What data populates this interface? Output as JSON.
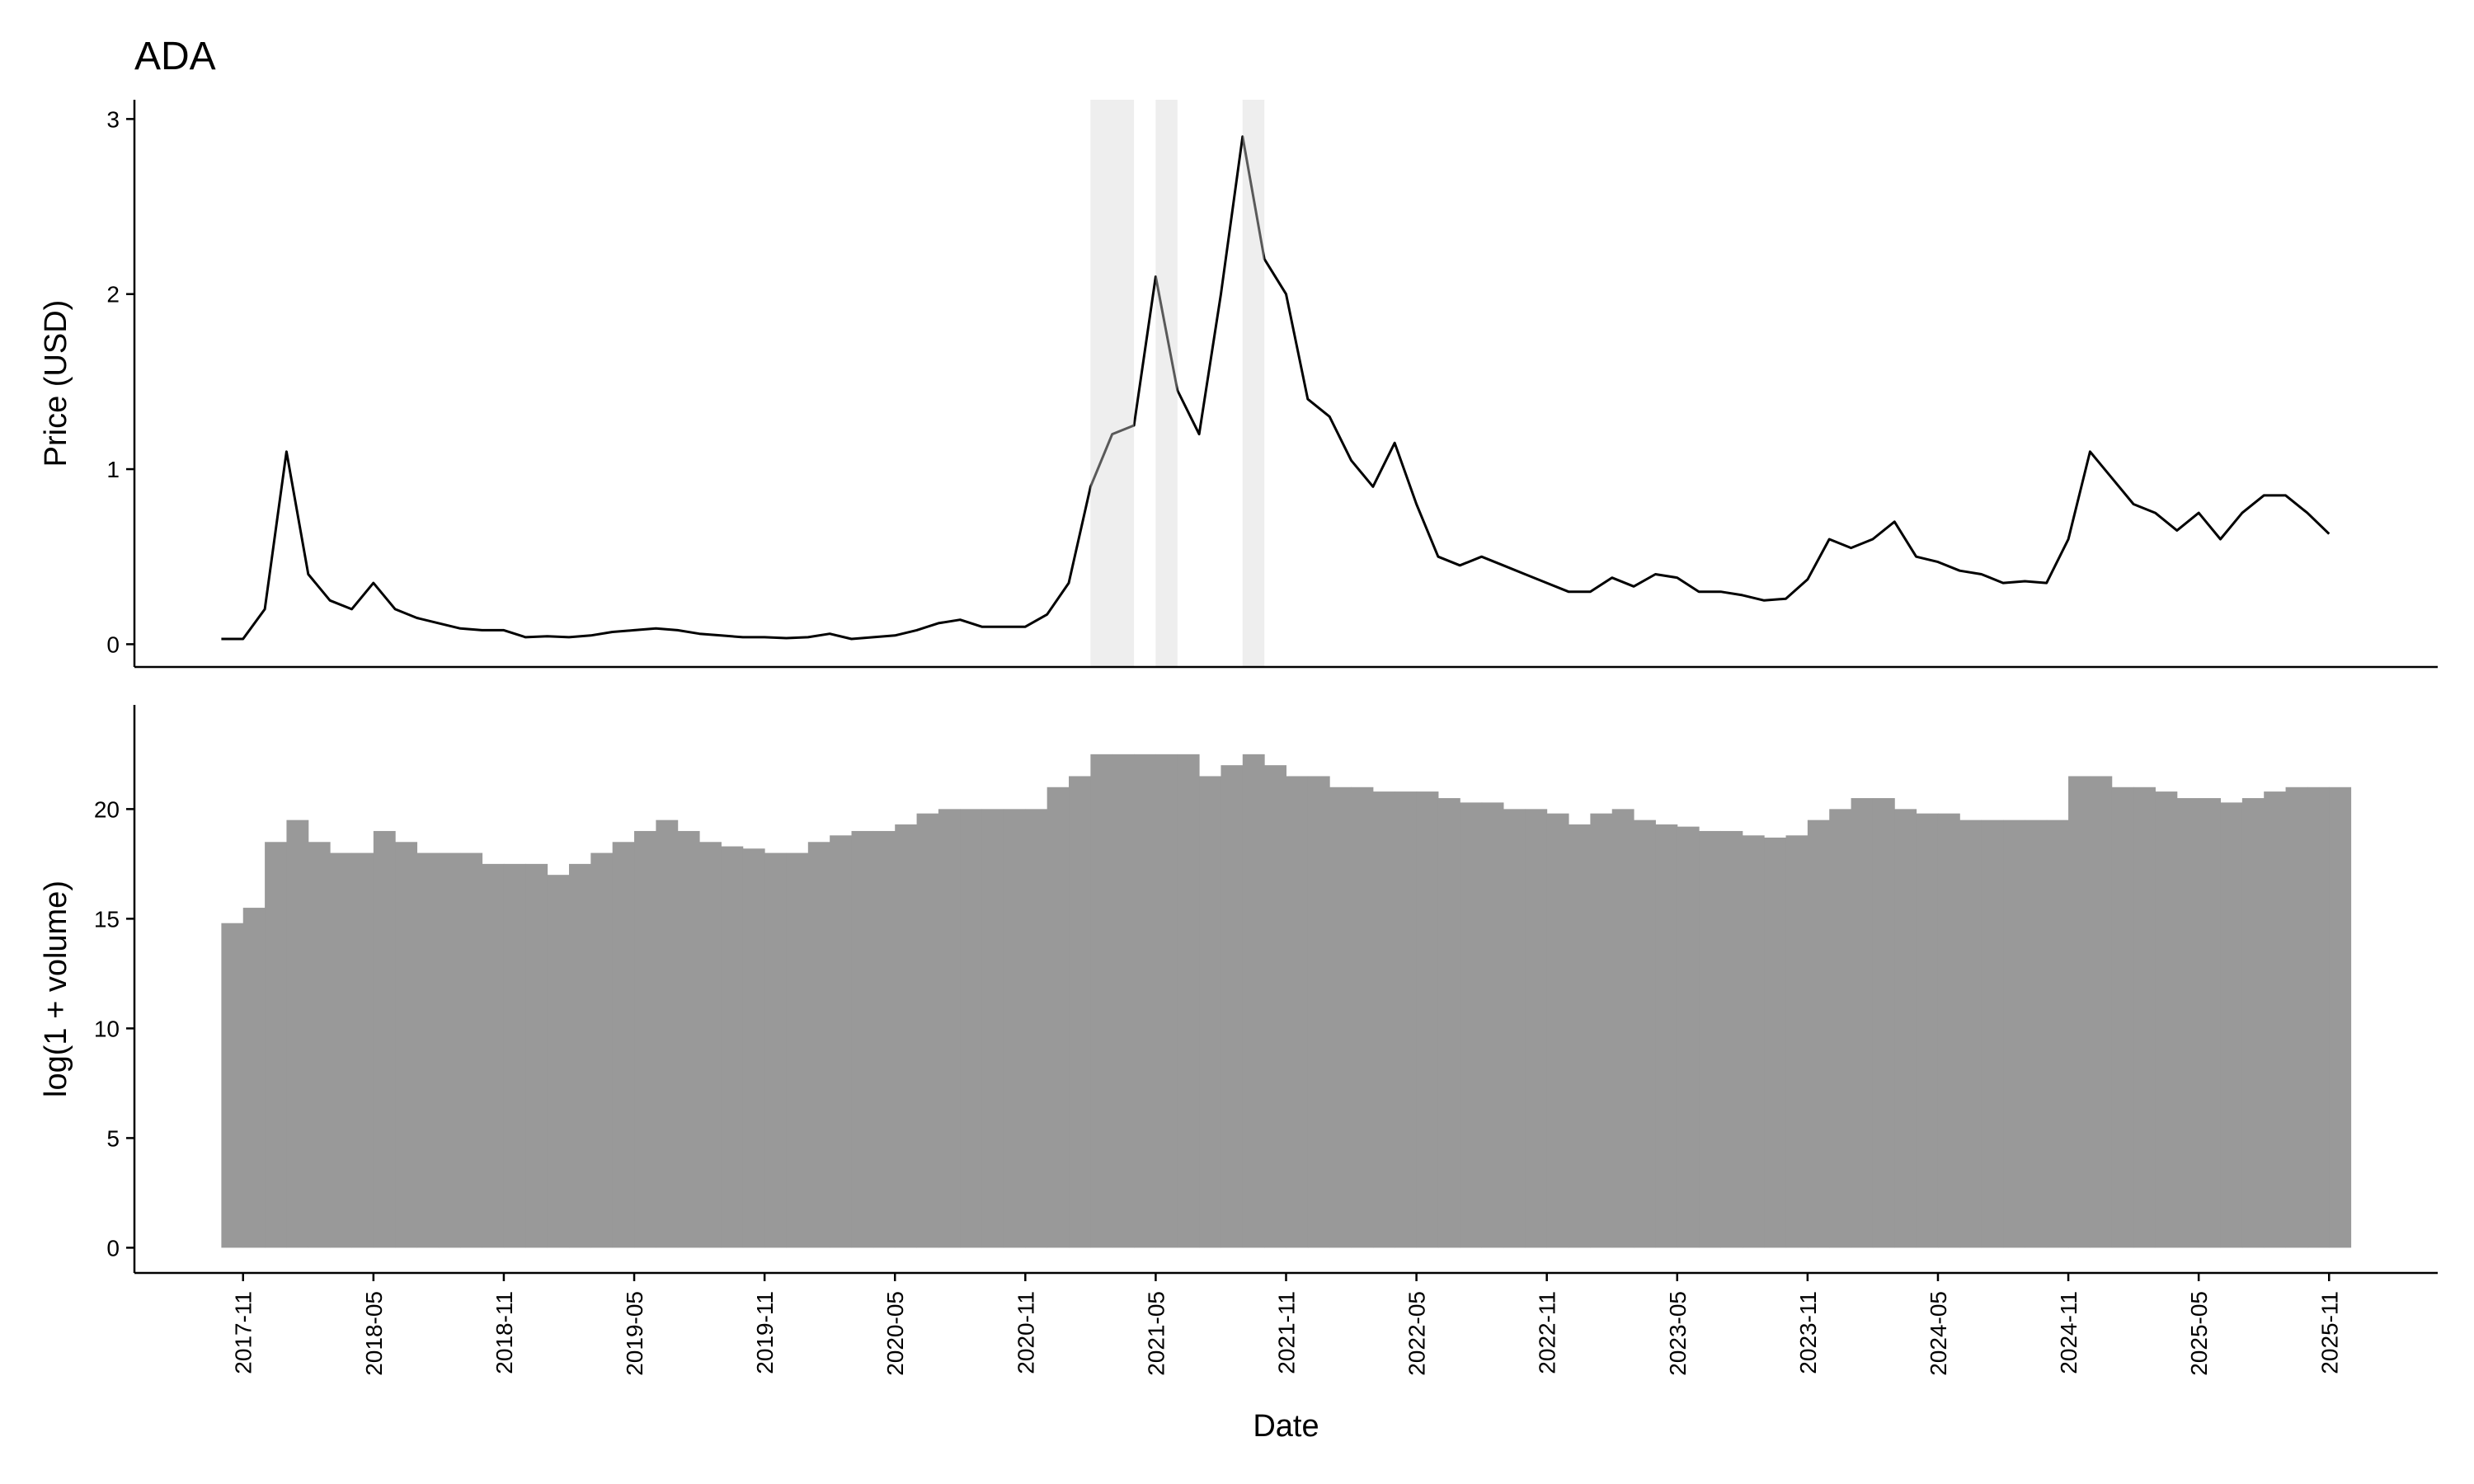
{
  "chart_data": [
    {
      "type": "line",
      "title": "ADA",
      "y_label": "Price (USD)",
      "x": [
        "2017-10",
        "2017-11",
        "2017-12",
        "2018-01",
        "2018-02",
        "2018-03",
        "2018-04",
        "2018-05",
        "2018-06",
        "2018-07",
        "2018-08",
        "2018-09",
        "2018-10",
        "2018-11",
        "2018-12",
        "2019-01",
        "2019-02",
        "2019-03",
        "2019-04",
        "2019-05",
        "2019-06",
        "2019-07",
        "2019-08",
        "2019-09",
        "2019-10",
        "2019-11",
        "2019-12",
        "2020-01",
        "2020-02",
        "2020-03",
        "2020-04",
        "2020-05",
        "2020-06",
        "2020-07",
        "2020-08",
        "2020-09",
        "2020-10",
        "2020-11",
        "2020-12",
        "2021-01",
        "2021-02",
        "2021-03",
        "2021-04",
        "2021-05",
        "2021-06",
        "2021-07",
        "2021-08",
        "2021-09",
        "2021-10",
        "2021-11",
        "2021-12",
        "2022-01",
        "2022-02",
        "2022-03",
        "2022-04",
        "2022-05",
        "2022-06",
        "2022-07",
        "2022-08",
        "2022-09",
        "2022-10",
        "2022-11",
        "2022-12",
        "2023-01",
        "2023-02",
        "2023-03",
        "2023-04",
        "2023-05",
        "2023-06",
        "2023-07",
        "2023-08",
        "2023-09",
        "2023-10",
        "2023-11",
        "2023-12",
        "2024-01",
        "2024-02",
        "2024-03",
        "2024-04",
        "2024-05",
        "2024-06",
        "2024-07",
        "2024-08",
        "2024-09",
        "2024-10",
        "2024-11",
        "2024-12",
        "2025-01",
        "2025-02",
        "2025-03",
        "2025-04",
        "2025-05",
        "2025-06",
        "2025-07",
        "2025-08",
        "2025-09",
        "2025-10",
        "2025-11"
      ],
      "values": [
        0.03,
        0.03,
        0.2,
        1.1,
        0.4,
        0.25,
        0.2,
        0.35,
        0.2,
        0.15,
        0.12,
        0.09,
        0.08,
        0.08,
        0.04,
        0.045,
        0.04,
        0.05,
        0.07,
        0.08,
        0.09,
        0.08,
        0.06,
        0.05,
        0.04,
        0.04,
        0.035,
        0.04,
        0.06,
        0.03,
        0.04,
        0.05,
        0.08,
        0.12,
        0.14,
        0.1,
        0.1,
        0.1,
        0.17,
        0.35,
        0.9,
        1.2,
        1.25,
        2.1,
        1.45,
        1.2,
        2.0,
        2.9,
        2.2,
        2.0,
        1.4,
        1.3,
        1.05,
        0.9,
        1.15,
        0.8,
        0.5,
        0.45,
        0.5,
        0.45,
        0.4,
        0.35,
        0.3,
        0.3,
        0.38,
        0.33,
        0.4,
        0.38,
        0.3,
        0.3,
        0.28,
        0.25,
        0.26,
        0.37,
        0.6,
        0.55,
        0.6,
        0.7,
        0.5,
        0.47,
        0.42,
        0.4,
        0.35,
        0.36,
        0.35,
        0.6,
        1.1,
        0.95,
        0.8,
        0.75,
        0.65,
        0.75,
        0.6,
        0.75,
        0.85,
        0.85,
        0.75,
        0.63
      ],
      "color": "#000000",
      "highlights": [
        {
          "start": "2021-02",
          "end": "2021-03"
        },
        {
          "start": "2021-05",
          "end": "2021-05"
        },
        {
          "start": "2021-09",
          "end": "2021-09"
        }
      ],
      "highlight_color": "#e5e5e5",
      "xlim": [
        "2017-06",
        "2026-04"
      ],
      "ylim": [
        -0.13,
        3.11
      ],
      "yticks": [
        0,
        1,
        2,
        3
      ]
    },
    {
      "type": "bar",
      "y_label": "log(1 + volume)",
      "x_label": "Date",
      "x": [
        "2017-10",
        "2017-11",
        "2017-12",
        "2018-01",
        "2018-02",
        "2018-03",
        "2018-04",
        "2018-05",
        "2018-06",
        "2018-07",
        "2018-08",
        "2018-09",
        "2018-10",
        "2018-11",
        "2018-12",
        "2019-01",
        "2019-02",
        "2019-03",
        "2019-04",
        "2019-05",
        "2019-06",
        "2019-07",
        "2019-08",
        "2019-09",
        "2019-10",
        "2019-11",
        "2019-12",
        "2020-01",
        "2020-02",
        "2020-03",
        "2020-04",
        "2020-05",
        "2020-06",
        "2020-07",
        "2020-08",
        "2020-09",
        "2020-10",
        "2020-11",
        "2020-12",
        "2021-01",
        "2021-02",
        "2021-03",
        "2021-04",
        "2021-05",
        "2021-06",
        "2021-07",
        "2021-08",
        "2021-09",
        "2021-10",
        "2021-11",
        "2021-12",
        "2022-01",
        "2022-02",
        "2022-03",
        "2022-04",
        "2022-05",
        "2022-06",
        "2022-07",
        "2022-08",
        "2022-09",
        "2022-10",
        "2022-11",
        "2022-12",
        "2023-01",
        "2023-02",
        "2023-03",
        "2023-04",
        "2023-05",
        "2023-06",
        "2023-07",
        "2023-08",
        "2023-09",
        "2023-10",
        "2023-11",
        "2023-12",
        "2024-01",
        "2024-02",
        "2024-03",
        "2024-04",
        "2024-05",
        "2024-06",
        "2024-07",
        "2024-08",
        "2024-09",
        "2024-10",
        "2024-11",
        "2024-12",
        "2025-01",
        "2025-02",
        "2025-03",
        "2025-04",
        "2025-05",
        "2025-06",
        "2025-07",
        "2025-08",
        "2025-09",
        "2025-10",
        "2025-11"
      ],
      "values": [
        14.8,
        15.5,
        18.5,
        19.5,
        18.5,
        18,
        18,
        19,
        18.5,
        18,
        18,
        18,
        17.5,
        17.5,
        17.5,
        17,
        17.5,
        18,
        18.5,
        19,
        19.5,
        19,
        18.5,
        18.3,
        18.2,
        18,
        18,
        18.5,
        18.8,
        19,
        19,
        19.3,
        19.8,
        20,
        20,
        20,
        20,
        20,
        21,
        21.5,
        22.5,
        22.5,
        22.5,
        22.5,
        22.5,
        21.5,
        22,
        22.5,
        22,
        21.5,
        21.5,
        21,
        21,
        20.8,
        20.8,
        20.8,
        20.5,
        20.3,
        20.3,
        20,
        20,
        19.8,
        19.3,
        19.8,
        20,
        19.5,
        19.3,
        19.2,
        19,
        19,
        18.8,
        18.7,
        18.8,
        19.5,
        20,
        20.5,
        20.5,
        20,
        19.8,
        19.8,
        19.5,
        19.5,
        19.5,
        19.5,
        19.5,
        21.5,
        21.5,
        21,
        21,
        20.8,
        20.5,
        20.5,
        20.3,
        20.5,
        20.8,
        21,
        21,
        21
      ],
      "color": "#999999",
      "xlim": [
        "2017-06",
        "2026-04"
      ],
      "xticks": [
        "2017-11",
        "2018-05",
        "2018-11",
        "2019-05",
        "2019-11",
        "2020-05",
        "2020-11",
        "2021-05",
        "2021-11",
        "2022-05",
        "2022-11",
        "2023-05",
        "2023-11",
        "2024-05",
        "2024-11",
        "2025-05",
        "2025-11"
      ],
      "ylim": [
        -1.15,
        24.75
      ],
      "yticks": [
        0,
        5,
        10,
        15,
        20
      ]
    }
  ]
}
